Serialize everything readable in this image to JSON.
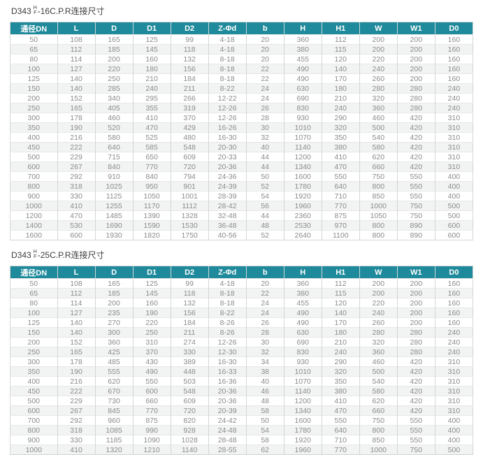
{
  "colors": {
    "header_bg": "#1e8a9b",
    "header_text": "#ffffff",
    "cell_text": "#8b8b8b",
    "zebra": "#f2f3f3",
    "border": "#d4d6d6",
    "title_text": "#3c3c3c"
  },
  "tables": [
    {
      "title": {
        "model": "D343",
        "frac_top": "H",
        "frac_bottom": "F",
        "rest": "-16C.P.R连接尺寸"
      },
      "columns": [
        "通径DN",
        "L",
        "D",
        "D1",
        "D2",
        "Z-Φd",
        "b",
        "H",
        "H1",
        "W",
        "W1",
        "D0"
      ],
      "rows": [
        [
          "50",
          "108",
          "165",
          "125",
          "99",
          "4-18",
          "20",
          "360",
          "112",
          "200",
          "200",
          "160"
        ],
        [
          "65",
          "112",
          "185",
          "145",
          "118",
          "4-18",
          "20",
          "380",
          "115",
          "200",
          "200",
          "160"
        ],
        [
          "80",
          "114",
          "200",
          "160",
          "132",
          "8-18",
          "20",
          "455",
          "120",
          "220",
          "200",
          "160"
        ],
        [
          "100",
          "127",
          "220",
          "180",
          "156",
          "8-18",
          "22",
          "490",
          "140",
          "240",
          "200",
          "160"
        ],
        [
          "125",
          "140",
          "250",
          "210",
          "184",
          "8-18",
          "22",
          "490",
          "170",
          "260",
          "200",
          "160"
        ],
        [
          "150",
          "140",
          "285",
          "240",
          "211",
          "8-22",
          "24",
          "630",
          "180",
          "280",
          "280",
          "240"
        ],
        [
          "200",
          "152",
          "340",
          "295",
          "266",
          "12-22",
          "24",
          "690",
          "210",
          "320",
          "280",
          "240"
        ],
        [
          "250",
          "165",
          "405",
          "355",
          "319",
          "12-26",
          "26",
          "830",
          "240",
          "360",
          "280",
          "240"
        ],
        [
          "300",
          "178",
          "460",
          "410",
          "370",
          "12-26",
          "28",
          "930",
          "290",
          "460",
          "420",
          "310"
        ],
        [
          "350",
          "190",
          "520",
          "470",
          "429",
          "16-26",
          "30",
          "1010",
          "320",
          "500",
          "420",
          "310"
        ],
        [
          "400",
          "216",
          "580",
          "525",
          "480",
          "16-30",
          "32",
          "1070",
          "350",
          "540",
          "420",
          "310"
        ],
        [
          "450",
          "222",
          "640",
          "585",
          "548",
          "20-30",
          "40",
          "1140",
          "380",
          "580",
          "420",
          "310"
        ],
        [
          "500",
          "229",
          "715",
          "650",
          "609",
          "20-33",
          "44",
          "1200",
          "410",
          "620",
          "420",
          "310"
        ],
        [
          "600",
          "267",
          "840",
          "770",
          "720",
          "20-36",
          "44",
          "1340",
          "470",
          "660",
          "420",
          "310"
        ],
        [
          "700",
          "292",
          "910",
          "840",
          "794",
          "24-36",
          "50",
          "1600",
          "550",
          "750",
          "550",
          "400"
        ],
        [
          "800",
          "318",
          "1025",
          "950",
          "901",
          "24-39",
          "52",
          "1780",
          "640",
          "800",
          "550",
          "400"
        ],
        [
          "900",
          "330",
          "1125",
          "1050",
          "1001",
          "28-39",
          "54",
          "1920",
          "710",
          "850",
          "550",
          "400"
        ],
        [
          "1000",
          "410",
          "1255",
          "1170",
          "1112",
          "28-42",
          "56",
          "1960",
          "770",
          "1000",
          "750",
          "500"
        ],
        [
          "1200",
          "470",
          "1485",
          "1390",
          "1328",
          "32-48",
          "44",
          "2360",
          "875",
          "1050",
          "750",
          "500"
        ],
        [
          "1400",
          "530",
          "1690",
          "1590",
          "1530",
          "36-48",
          "48",
          "2530",
          "970",
          "800",
          "890",
          "600"
        ],
        [
          "1600",
          "600",
          "1930",
          "1820",
          "1750",
          "40-56",
          "52",
          "2640",
          "1100",
          "800",
          "890",
          "600"
        ]
      ]
    },
    {
      "title": {
        "model": "D343",
        "frac_top": "H",
        "frac_bottom": "F",
        "rest": "-25C.P.R连接尺寸"
      },
      "columns": [
        "通径DN",
        "L",
        "D",
        "D1",
        "D2",
        "Z-Φd",
        "b",
        "H",
        "H1",
        "W",
        "W1",
        "D0"
      ],
      "rows": [
        [
          "50",
          "108",
          "165",
          "125",
          "99",
          "4-18",
          "20",
          "360",
          "112",
          "200",
          "200",
          "160"
        ],
        [
          "65",
          "112",
          "185",
          "145",
          "118",
          "8-18",
          "22",
          "380",
          "115",
          "200",
          "200",
          "160"
        ],
        [
          "80",
          "114",
          "200",
          "160",
          "132",
          "8-18",
          "24",
          "455",
          "120",
          "220",
          "200",
          "160"
        ],
        [
          "100",
          "127",
          "235",
          "190",
          "156",
          "8-22",
          "24",
          "490",
          "140",
          "240",
          "200",
          "160"
        ],
        [
          "125",
          "140",
          "270",
          "220",
          "184",
          "8-26",
          "26",
          "490",
          "170",
          "260",
          "200",
          "160"
        ],
        [
          "150",
          "140",
          "300",
          "250",
          "211",
          "8-26",
          "28",
          "630",
          "180",
          "280",
          "280",
          "240"
        ],
        [
          "200",
          "152",
          "360",
          "310",
          "274",
          "12-26",
          "30",
          "690",
          "210",
          "320",
          "280",
          "240"
        ],
        [
          "250",
          "165",
          "425",
          "370",
          "330",
          "12-30",
          "32",
          "830",
          "240",
          "360",
          "280",
          "240"
        ],
        [
          "300",
          "178",
          "485",
          "430",
          "389",
          "16-30",
          "34",
          "930",
          "290",
          "460",
          "420",
          "310"
        ],
        [
          "350",
          "190",
          "555",
          "490",
          "448",
          "16-33",
          "38",
          "1010",
          "320",
          "500",
          "420",
          "310"
        ],
        [
          "400",
          "216",
          "620",
          "550",
          "503",
          "16-36",
          "40",
          "1070",
          "350",
          "540",
          "420",
          "310"
        ],
        [
          "450",
          "222",
          "670",
          "600",
          "548",
          "20-36",
          "46",
          "1140",
          "380",
          "580",
          "420",
          "310"
        ],
        [
          "500",
          "229",
          "730",
          "660",
          "609",
          "20-36",
          "48",
          "1200",
          "410",
          "620",
          "420",
          "310"
        ],
        [
          "600",
          "267",
          "845",
          "770",
          "720",
          "20-39",
          "58",
          "1340",
          "470",
          "660",
          "420",
          "310"
        ],
        [
          "700",
          "292",
          "960",
          "875",
          "820",
          "24-42",
          "50",
          "1600",
          "550",
          "750",
          "550",
          "400"
        ],
        [
          "800",
          "318",
          "1085",
          "990",
          "928",
          "24-48",
          "54",
          "1780",
          "640",
          "800",
          "550",
          "400"
        ],
        [
          "900",
          "330",
          "1185",
          "1090",
          "1028",
          "28-48",
          "58",
          "1920",
          "710",
          "850",
          "550",
          "400"
        ],
        [
          "1000",
          "410",
          "1320",
          "1210",
          "1140",
          "28-55",
          "62",
          "1960",
          "770",
          "1000",
          "750",
          "500"
        ]
      ]
    }
  ]
}
